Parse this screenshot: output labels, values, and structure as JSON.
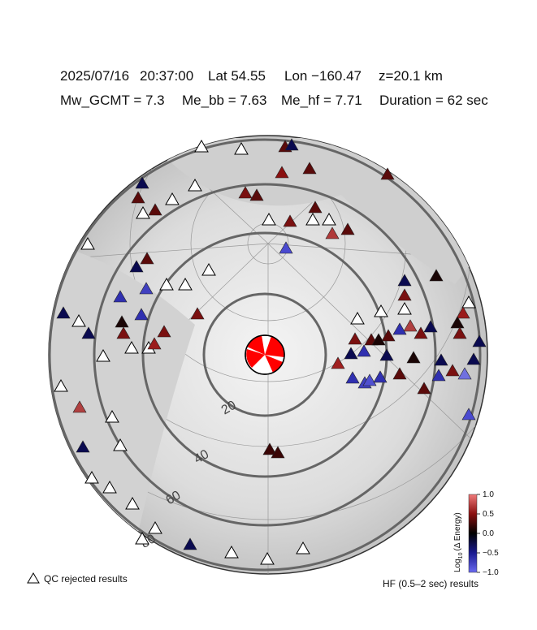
{
  "header": {
    "line1": [
      "2025/07/16",
      "20:37:00",
      "Lat 54.55",
      "Lon −160.47",
      "z=20.1 km"
    ],
    "line2": [
      "Mw_GCMT = 7.3",
      "Me_bb = 7.63",
      "Me_hf = 7.71",
      "Duration = 62 sec"
    ]
  },
  "ring_labels": [
    "20",
    "40",
    "60",
    "80"
  ],
  "colorbar": {
    "label_base": "Log",
    "label_sub": "10",
    "label_rest": "(Δ Energy)",
    "range": [
      -1.0,
      1.0
    ],
    "ticks": [
      {
        "value": 1.0,
        "label": "1.0"
      },
      {
        "value": 0.5,
        "label": "0.5"
      },
      {
        "value": 0.0,
        "label": "0.0"
      },
      {
        "value": -0.5,
        "label": "−0.5"
      },
      {
        "value": -1.0,
        "label": "−1.0"
      }
    ]
  },
  "legend": {
    "qc_rejected": "QC rejected results",
    "hf_results": "HF (0.5–2 sec) results"
  }
}
